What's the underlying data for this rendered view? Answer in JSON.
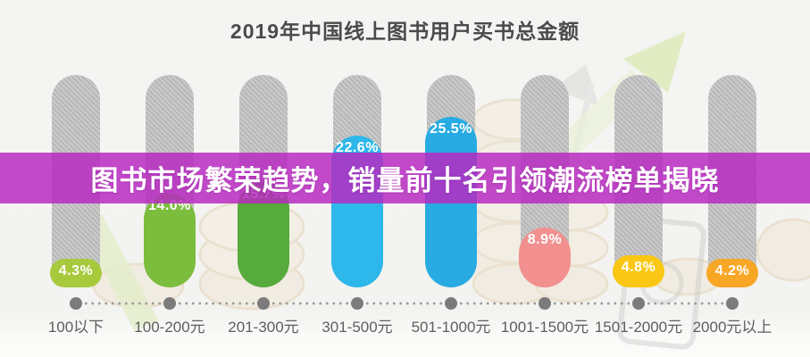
{
  "chart_data": {
    "type": "bar",
    "title": "2019年中国线上图书用户买书总金额",
    "categories": [
      "100以下",
      "100-200元",
      "201-300元",
      "301-500元",
      "501-1000元",
      "1001-1500元",
      "1501-2000元",
      "2000元以上"
    ],
    "values": [
      4.3,
      14.0,
      15.7,
      22.6,
      25.5,
      8.9,
      4.8,
      4.2
    ],
    "value_labels": [
      "4.3%",
      "14.0%",
      "15.7%",
      "22.6%",
      "25.5%",
      "8.9%",
      "4.8%",
      "4.2%"
    ],
    "bar_colors": [
      "#a7c93c",
      "#7cbd3e",
      "#57aa3c",
      "#2db7ea",
      "#28abe2",
      "#f1908e",
      "#f9c714",
      "#f7a725"
    ],
    "unit": "%",
    "ylim": [
      0,
      32
    ],
    "grid": false,
    "legend": false,
    "value_label_color": "#ffffff",
    "track_color": "#bfbfbf",
    "axis_style": "dotted line with node dots under each bar"
  },
  "banner": {
    "text": "图书市场繁荣趋势，销量前十名引领潮流榜单揭晓",
    "background_color": "#b728c1",
    "text_color": "#ffffff"
  },
  "decorations": {
    "icons": [
      "growth-arrow-icon",
      "coin-stack-icon",
      "banknote-icon",
      "green-ribbon-icon"
    ],
    "accent_green": "#e2ecc3",
    "accent_beige": "#f0e7d4"
  }
}
